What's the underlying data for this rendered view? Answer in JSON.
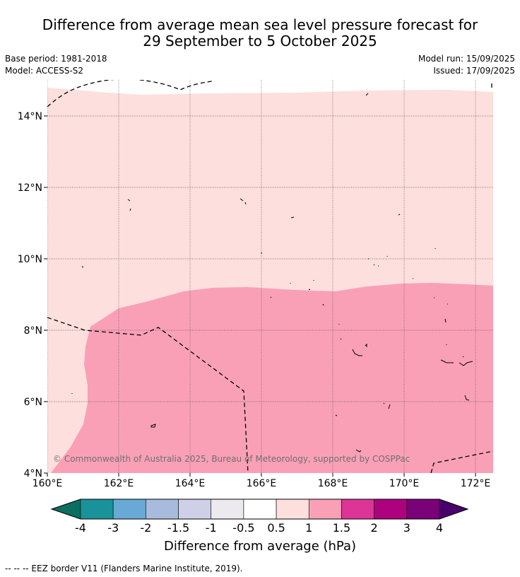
{
  "header": {
    "title_line1": "Difference from average mean sea level pressure forecast for",
    "title_line2": "29 September to 5 October 2025",
    "base_period": "Base period: 1981-2018",
    "model": "Model: ACCESS-S2",
    "model_run": "Model run: 15/09/2025",
    "issued": "Issued: 17/09/2025"
  },
  "map": {
    "x_ticks": [
      "160°E",
      "162°E",
      "164°E",
      "166°E",
      "168°E",
      "170°E",
      "172°E"
    ],
    "y_ticks": [
      "14°N",
      "12°N",
      "10°N",
      "8°N",
      "6°N",
      "4°N"
    ],
    "copyright": "© Commonwealth of Australia 2025, Bureau of Meteorology, supported by COSPPac",
    "fill_colors": {
      "0.5 to 1": "#fddfde",
      "1 to 1.5": "#f9a0b7"
    }
  },
  "legend": {
    "labels": [
      "-4",
      "-3",
      "-2",
      "-1.5",
      "-1",
      "-0.5",
      "0.5",
      "1",
      "1.5",
      "2",
      "3",
      "4"
    ],
    "colors": [
      "#1a9299",
      "#68aad5",
      "#a7bcdc",
      "#cdd0e7",
      "#ece9ef",
      "#ffffff",
      "#fddfde",
      "#f9a0b7",
      "#dd3497",
      "#ae017e",
      "#7a0177"
    ],
    "extend_low_color": "#0b6e61",
    "extend_high_color": "#49006a",
    "title": "Difference from average (hPa)"
  },
  "footer": {
    "eez_note": "--  --  -- EEZ border V11 (Flanders Marine Institute, 2019)."
  }
}
